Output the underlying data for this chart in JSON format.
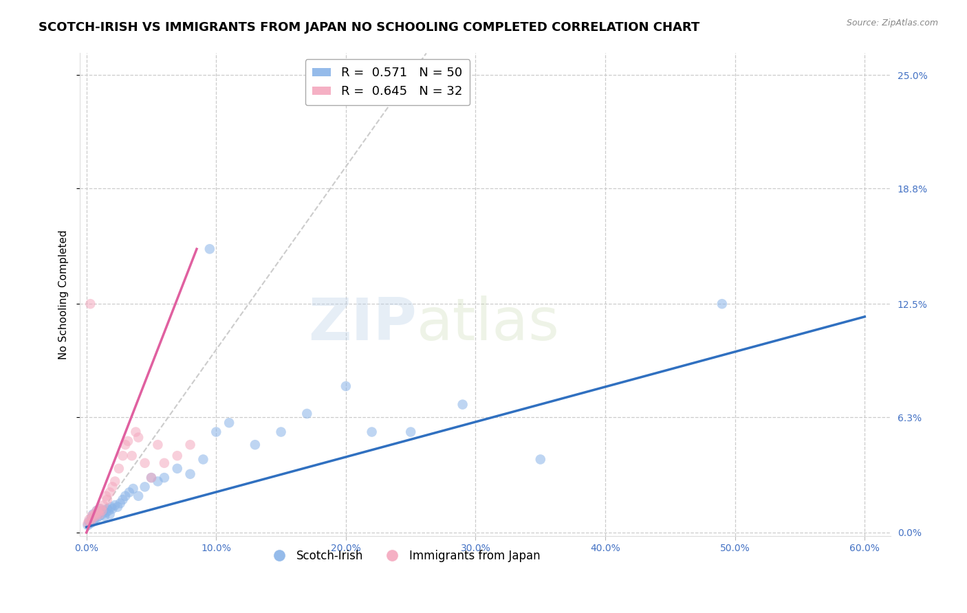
{
  "title": "SCOTCH-IRISH VS IMMIGRANTS FROM JAPAN NO SCHOOLING COMPLETED CORRELATION CHART",
  "source": "Source: ZipAtlas.com",
  "xlabel_ticks": [
    "0.0%",
    "10.0%",
    "20.0%",
    "30.0%",
    "40.0%",
    "50.0%",
    "60.0%"
  ],
  "xlabel_vals": [
    0.0,
    0.1,
    0.2,
    0.3,
    0.4,
    0.5,
    0.6
  ],
  "ylabel": "No Schooling Completed",
  "ylabel_ticks": [
    "0.0%",
    "6.3%",
    "12.5%",
    "18.8%",
    "25.0%"
  ],
  "ylabel_vals": [
    0.0,
    0.063,
    0.125,
    0.188,
    0.25
  ],
  "xlim": [
    -0.005,
    0.62
  ],
  "ylim": [
    -0.002,
    0.262
  ],
  "legend_entries": [
    {
      "label": "R =  0.571   N = 50",
      "color": "#8ab4e8"
    },
    {
      "label": "R =  0.645   N = 32",
      "color": "#f4a8be"
    }
  ],
  "legend_label_scotch": "Scotch-Irish",
  "legend_label_japan": "Immigrants from Japan",
  "scatter_blue": {
    "x": [
      0.001,
      0.002,
      0.003,
      0.004,
      0.005,
      0.005,
      0.006,
      0.007,
      0.008,
      0.008,
      0.009,
      0.01,
      0.01,
      0.011,
      0.012,
      0.013,
      0.014,
      0.015,
      0.016,
      0.017,
      0.018,
      0.019,
      0.02,
      0.022,
      0.024,
      0.026,
      0.028,
      0.03,
      0.033,
      0.036,
      0.04,
      0.045,
      0.05,
      0.055,
      0.06,
      0.07,
      0.08,
      0.09,
      0.1,
      0.11,
      0.13,
      0.15,
      0.17,
      0.2,
      0.22,
      0.25,
      0.29,
      0.35,
      0.49,
      0.095
    ],
    "y": [
      0.004,
      0.006,
      0.005,
      0.008,
      0.006,
      0.01,
      0.007,
      0.009,
      0.008,
      0.012,
      0.01,
      0.009,
      0.013,
      0.011,
      0.01,
      0.012,
      0.009,
      0.011,
      0.013,
      0.012,
      0.01,
      0.014,
      0.013,
      0.015,
      0.014,
      0.016,
      0.018,
      0.02,
      0.022,
      0.024,
      0.02,
      0.025,
      0.03,
      0.028,
      0.03,
      0.035,
      0.032,
      0.04,
      0.055,
      0.06,
      0.048,
      0.055,
      0.065,
      0.08,
      0.055,
      0.055,
      0.07,
      0.04,
      0.125,
      0.155
    ]
  },
  "scatter_pink": {
    "x": [
      0.001,
      0.002,
      0.003,
      0.004,
      0.005,
      0.006,
      0.007,
      0.008,
      0.009,
      0.01,
      0.011,
      0.012,
      0.013,
      0.015,
      0.016,
      0.018,
      0.02,
      0.022,
      0.025,
      0.028,
      0.03,
      0.032,
      0.035,
      0.038,
      0.04,
      0.045,
      0.05,
      0.055,
      0.06,
      0.07,
      0.08,
      0.003
    ],
    "y": [
      0.005,
      0.007,
      0.006,
      0.009,
      0.008,
      0.01,
      0.009,
      0.012,
      0.011,
      0.01,
      0.013,
      0.012,
      0.015,
      0.02,
      0.018,
      0.022,
      0.025,
      0.028,
      0.035,
      0.042,
      0.048,
      0.05,
      0.042,
      0.055,
      0.052,
      0.038,
      0.03,
      0.048,
      0.038,
      0.042,
      0.048,
      0.125
    ]
  },
  "blue_line": {
    "x0": 0.0,
    "y0": 0.003,
    "x1": 0.6,
    "y1": 0.118
  },
  "pink_line": {
    "x0": 0.0,
    "y0": 0.0,
    "x1": 0.085,
    "y1": 0.155
  },
  "diagonal_line": {
    "x0": 0.0,
    "y0": 0.0,
    "x1": 0.262,
    "y1": 0.262
  },
  "watermark_zip": "ZIP",
  "watermark_atlas": "atlas",
  "background_color": "#ffffff",
  "grid_color": "#cccccc",
  "dot_size": 110,
  "dot_alpha": 0.55,
  "blue_color": "#8ab4e8",
  "pink_color": "#f4a8be",
  "blue_line_color": "#3070c0",
  "pink_line_color": "#e060a0",
  "diag_color": "#cccccc",
  "title_fontsize": 13,
  "axis_label_fontsize": 11,
  "tick_fontsize": 10,
  "tick_color": "#4472c4"
}
